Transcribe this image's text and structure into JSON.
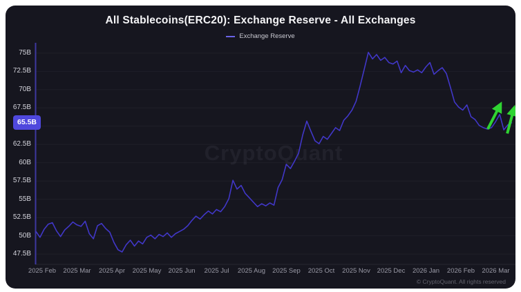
{
  "watermark": "CryptoQuant",
  "footer": {
    "copyright": "© CryptoQuant. All rights reserved"
  },
  "current_value": {
    "label": "65.5B",
    "value": 65.5,
    "badge_color": "#4f48dd"
  },
  "chart_data": {
    "type": "line",
    "title": "All Stablecoins(ERC20): Exchange Reserve - All Exchanges",
    "legend_position": "top",
    "grid": "horizontal",
    "x_start": "2025-01-25",
    "x_end": "2026-03-14",
    "x_ticks": [
      "2025 Feb",
      "2025 Mar",
      "2025 Apr",
      "2025 May",
      "2025 Jun",
      "2025 Jul",
      "2025 Aug",
      "2025 Sep",
      "2025 Oct",
      "2025 Nov",
      "2025 Dec",
      "2026 Jan",
      "2026 Feb",
      "2026 Mar"
    ],
    "y_tick_values": [
      75,
      72.5,
      70,
      67.5,
      65,
      62.5,
      60,
      57.5,
      55,
      52.5,
      50,
      47.5
    ],
    "y_tick_labels": [
      "75B",
      "72.5B",
      "70B",
      "67.5B",
      "65B",
      "62.5B",
      "60B",
      "57.5B",
      "55B",
      "52.5B",
      "50B",
      "47.5B"
    ],
    "y_unit": "billions USD",
    "ylim": [
      46.1,
      76.4
    ],
    "series": [
      {
        "name": "Exchange Reserve",
        "color": "#4137c8",
        "values": [
          50.6,
          49.8,
          50.9,
          51.6,
          51.8,
          50.7,
          49.9,
          50.8,
          51.3,
          51.9,
          51.5,
          51.3,
          52.0,
          50.3,
          49.6,
          51.4,
          51.7,
          51.0,
          50.5,
          49.1,
          48.1,
          47.8,
          48.8,
          49.4,
          48.6,
          49.3,
          48.9,
          49.8,
          50.1,
          49.6,
          50.2,
          49.9,
          50.4,
          49.8,
          50.3,
          50.6,
          50.9,
          51.4,
          52.1,
          52.7,
          52.3,
          52.9,
          53.4,
          53.0,
          53.6,
          53.3,
          54.0,
          55.1,
          57.6,
          56.4,
          56.9,
          55.8,
          55.2,
          54.6,
          54.0,
          54.4,
          54.1,
          54.5,
          54.2,
          56.6,
          57.7,
          59.8,
          59.2,
          60.2,
          61.3,
          63.8,
          65.7,
          64.3,
          63.0,
          62.6,
          63.6,
          63.2,
          64.0,
          64.8,
          64.4,
          65.8,
          66.4,
          67.2,
          68.4,
          70.5,
          72.8,
          75.1,
          74.2,
          74.8,
          74.0,
          74.4,
          73.7,
          73.5,
          73.9,
          72.3,
          73.3,
          72.6,
          72.4,
          72.7,
          72.3,
          73.1,
          73.7,
          72.1,
          72.6,
          73.0,
          72.2,
          70.3,
          68.3,
          67.6,
          67.2,
          67.9,
          66.3,
          65.9,
          65.1,
          64.8,
          64.6,
          64.8,
          65.6,
          66.6,
          64.5,
          65.2,
          65.5
        ]
      }
    ],
    "annotations": [
      {
        "type": "arrow",
        "color": "#2fd432",
        "from": {
          "x_frac": 0.949,
          "value": 64.6
        },
        "to": {
          "x_frac": 0.975,
          "value": 67.9
        }
      },
      {
        "type": "arrow",
        "color": "#2fd432",
        "from": {
          "x_frac": 0.99,
          "value": 64.0
        },
        "to": {
          "x_frac": 1.004,
          "value": 67.4
        }
      }
    ]
  }
}
